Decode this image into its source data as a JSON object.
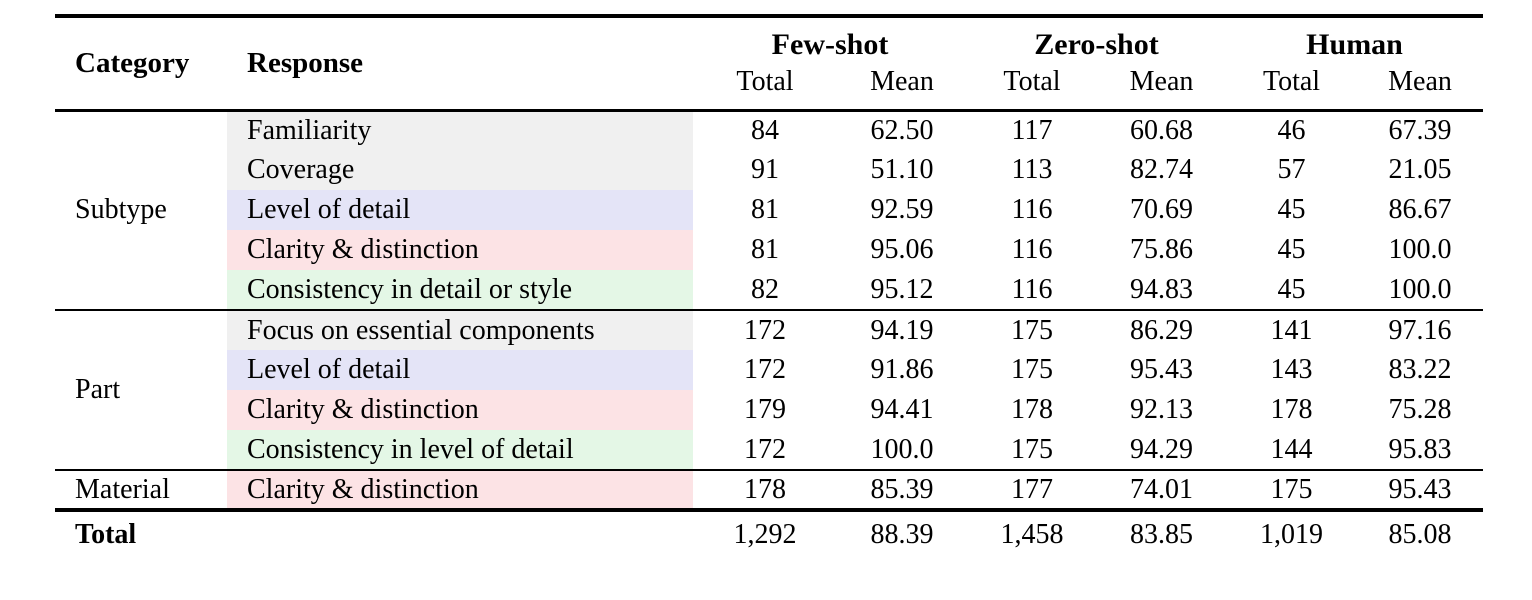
{
  "table": {
    "headers": {
      "category": "Category",
      "response": "Response",
      "groups": [
        {
          "label": "Few-shot",
          "total": "Total",
          "mean": "Mean"
        },
        {
          "label": "Zero-shot",
          "total": "Total",
          "mean": "Mean"
        },
        {
          "label": "Human",
          "total": "Total",
          "mean": "Mean"
        }
      ]
    },
    "colors": {
      "gray": "#f0f0f0",
      "blue": "#e4e4f7",
      "pink": "#fce3e5",
      "green": "#e4f7e6"
    },
    "rows": [
      {
        "category": "Subtype",
        "response": "Familiarity",
        "tint": "gray",
        "fs_total": "84",
        "fs_mean": "62.50",
        "zs_total": "117",
        "zs_mean": "60.68",
        "h_total": "46",
        "h_mean": "67.39"
      },
      {
        "response": "Coverage",
        "tint": "gray",
        "fs_total": "91",
        "fs_mean": "51.10",
        "zs_total": "113",
        "zs_mean": "82.74",
        "h_total": "57",
        "h_mean": "21.05"
      },
      {
        "response": "Level of detail",
        "tint": "blue",
        "fs_total": "81",
        "fs_mean": "92.59",
        "zs_total": "116",
        "zs_mean": "70.69",
        "h_total": "45",
        "h_mean": "86.67"
      },
      {
        "response": "Clarity & distinction",
        "tint": "pink",
        "fs_total": "81",
        "fs_mean": "95.06",
        "zs_total": "116",
        "zs_mean": "75.86",
        "h_total": "45",
        "h_mean": "100.0"
      },
      {
        "response": "Consistency in detail or style",
        "tint": "green",
        "fs_total": "82",
        "fs_mean": "95.12",
        "zs_total": "116",
        "zs_mean": "94.83",
        "h_total": "45",
        "h_mean": "100.0"
      },
      {
        "category": "Part",
        "response": "Focus on essential components",
        "tint": "gray",
        "fs_total": "172",
        "fs_mean": "94.19",
        "zs_total": "175",
        "zs_mean": "86.29",
        "h_total": "141",
        "h_mean": "97.16"
      },
      {
        "response": "Level of detail",
        "tint": "blue",
        "fs_total": "172",
        "fs_mean": "91.86",
        "zs_total": "175",
        "zs_mean": "95.43",
        "h_total": "143",
        "h_mean": "83.22"
      },
      {
        "response": "Clarity & distinction",
        "tint": "pink",
        "fs_total": "179",
        "fs_mean": "94.41",
        "zs_total": "178",
        "zs_mean": "92.13",
        "h_total": "178",
        "h_mean": "75.28"
      },
      {
        "response": "Consistency in level of detail",
        "tint": "green",
        "fs_total": "172",
        "fs_mean": "100.0",
        "zs_total": "175",
        "zs_mean": "94.29",
        "h_total": "144",
        "h_mean": "95.83"
      },
      {
        "category": "Material",
        "response": "Clarity & distinction",
        "tint": "pink",
        "fs_total": "178",
        "fs_mean": "85.39",
        "zs_total": "177",
        "zs_mean": "74.01",
        "h_total": "175",
        "h_mean": "95.43"
      }
    ],
    "total_row": {
      "label": "Total",
      "fs_total": "1,292",
      "fs_mean": "88.39",
      "zs_total": "1,458",
      "zs_mean": "83.85",
      "h_total": "1,019",
      "h_mean": "85.08"
    }
  }
}
